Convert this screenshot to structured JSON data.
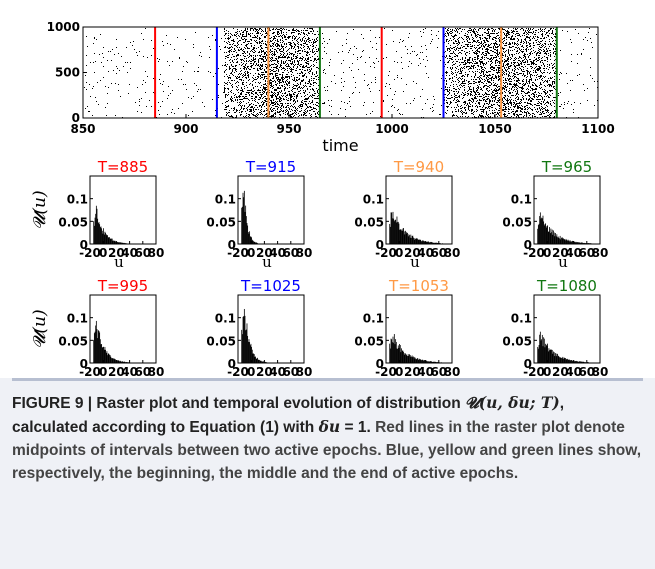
{
  "chart_data": [
    {
      "type": "scatter",
      "subtype": "raster",
      "xlabel": "time",
      "ylabel": "",
      "xlim": [
        850,
        1100
      ],
      "ylim": [
        0,
        1000
      ],
      "xticks": [
        "850",
        "900",
        "950",
        "1000",
        "1050",
        "1100"
      ],
      "yticks": [
        "0",
        "500",
        "1000"
      ],
      "active_epochs": [
        [
          918,
          965
        ],
        [
          1025,
          1080
        ]
      ],
      "background_density": 0.02,
      "epoch_density": 0.35,
      "vlines": [
        {
          "x": 885,
          "color": "#ff0000"
        },
        {
          "x": 915,
          "color": "#0000ff"
        },
        {
          "x": 940,
          "color": "#ff9944"
        },
        {
          "x": 965,
          "color": "#117711"
        },
        {
          "x": 995,
          "color": "#ff0000"
        },
        {
          "x": 1025,
          "color": "#0000ff"
        },
        {
          "x": 1053,
          "color": "#ff9944"
        },
        {
          "x": 1080,
          "color": "#117711"
        }
      ]
    },
    {
      "type": "bar",
      "grid_rows": 2,
      "grid_cols": 4,
      "xlim": [
        -20,
        80
      ],
      "ylim": [
        0,
        0.15
      ],
      "xticks": [
        "-20",
        "0",
        "20",
        "40",
        "60",
        "80"
      ],
      "yticks": [
        "0",
        "0.05",
        "0.1"
      ],
      "xlabel": "u",
      "ylabel": "𝓤(u)",
      "bin_width": 1,
      "panels": [
        {
          "title": "T=885",
          "color": "#ff0000",
          "peak": 0.07,
          "decay": 12
        },
        {
          "title": "T=915",
          "color": "#0000ff",
          "peak": 0.115,
          "decay": 5
        },
        {
          "title": "T=940",
          "color": "#ff9944",
          "peak": 0.07,
          "decay": 20
        },
        {
          "title": "T=965",
          "color": "#117711",
          "peak": 0.065,
          "decay": 20
        },
        {
          "title": "T=995",
          "color": "#ff0000",
          "peak": 0.085,
          "decay": 12
        },
        {
          "title": "T=1025",
          "color": "#0000ff",
          "peak": 0.12,
          "decay": 8
        },
        {
          "title": "T=1053",
          "color": "#ff9944",
          "peak": 0.06,
          "decay": 20
        },
        {
          "title": "T=1080",
          "color": "#117711",
          "peak": 0.06,
          "decay": 20
        }
      ]
    }
  ],
  "caption": {
    "figure_label": "FIGURE 9 | Raster plot and temporal evolution of distribution",
    "formula_main": "𝓤(u, δu; T)",
    "formula_tail": ", calculated according to Equation (1) with ",
    "delta_eq": "δu",
    "delta_tail": " = 1.",
    "body": "Red lines in the raster plot denote midpoints of intervals between two active epochs. Blue, yellow and green lines show, respectively, the beginning, the middle and the end of active epochs."
  }
}
